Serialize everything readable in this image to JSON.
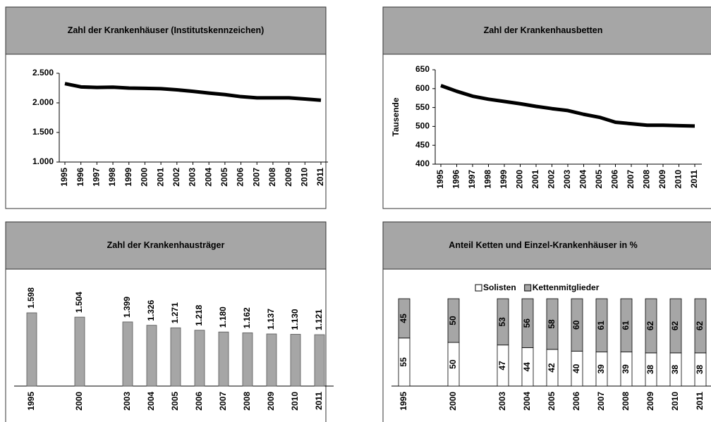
{
  "chart_data": [
    {
      "type": "line",
      "title": "Zahl der Krankenhäuser (Institutskennzeichen)",
      "categories": [
        "1995",
        "1996",
        "1997",
        "1998",
        "1999",
        "2000",
        "2001",
        "2002",
        "2003",
        "2004",
        "2005",
        "2006",
        "2007",
        "2008",
        "2009",
        "2010",
        "2011"
      ],
      "values": [
        2325,
        2270,
        2260,
        2265,
        2250,
        2245,
        2240,
        2220,
        2195,
        2165,
        2140,
        2105,
        2085,
        2085,
        2085,
        2065,
        2045
      ],
      "color": "#000000",
      "ylim": [
        1000,
        2500
      ],
      "yticks": [
        {
          "value": 1000,
          "label": "1.000"
        },
        {
          "value": 1500,
          "label": "1.500"
        },
        {
          "value": 2000,
          "label": "2.000"
        },
        {
          "value": 2500,
          "label": "2.500"
        }
      ]
    },
    {
      "type": "line",
      "title": "Zahl der Krankenhausbetten",
      "ylabel": "Tausende",
      "categories": [
        "1995",
        "1996",
        "1997",
        "1998",
        "1999",
        "2000",
        "2001",
        "2002",
        "2003",
        "2004",
        "2005",
        "2006",
        "2007",
        "2008",
        "2009",
        "2010",
        "2011"
      ],
      "values": [
        608,
        593,
        580,
        572,
        566,
        560,
        553,
        547,
        542,
        532,
        524,
        511,
        507,
        503,
        503,
        502,
        501
      ],
      "color": "#000000",
      "ylim": [
        400,
        650
      ],
      "yticks": [
        400,
        450,
        500,
        550,
        600,
        650
      ]
    },
    {
      "type": "bar",
      "title": "Zahl der Krankenhausträger",
      "categories": [
        "1995",
        null,
        "2000",
        null,
        "2003",
        "2004",
        "2005",
        "2006",
        "2007",
        "2008",
        "2009",
        "2010",
        "2011"
      ],
      "values": [
        1598,
        null,
        1504,
        null,
        1399,
        1326,
        1271,
        1218,
        1180,
        1162,
        1137,
        1130,
        1121
      ],
      "value_labels": [
        "1.598",
        null,
        "1.504",
        null,
        "1.399",
        "1.326",
        "1.271",
        "1.218",
        "1.180",
        "1.162",
        "1.137",
        "1.130",
        "1.121"
      ],
      "color": "#a6a6a6"
    },
    {
      "type": "stacked_bar",
      "title": "Anteil Ketten und Einzel-Krankenhäuser in %",
      "categories": [
        "1995",
        null,
        "2000",
        null,
        "2003",
        "2004",
        "2005",
        "2006",
        "2007",
        "2008",
        "2009",
        "2010",
        "2011"
      ],
      "series": [
        {
          "name": "Solisten",
          "color": "#ffffff",
          "values": [
            55,
            null,
            50,
            null,
            47,
            44,
            42,
            40,
            39,
            39,
            38,
            38,
            38
          ]
        },
        {
          "name": "Kettenmitglieder",
          "color": "#a6a6a6",
          "values": [
            45,
            null,
            50,
            null,
            53,
            56,
            58,
            60,
            61,
            61,
            62,
            62,
            62
          ]
        }
      ]
    }
  ]
}
